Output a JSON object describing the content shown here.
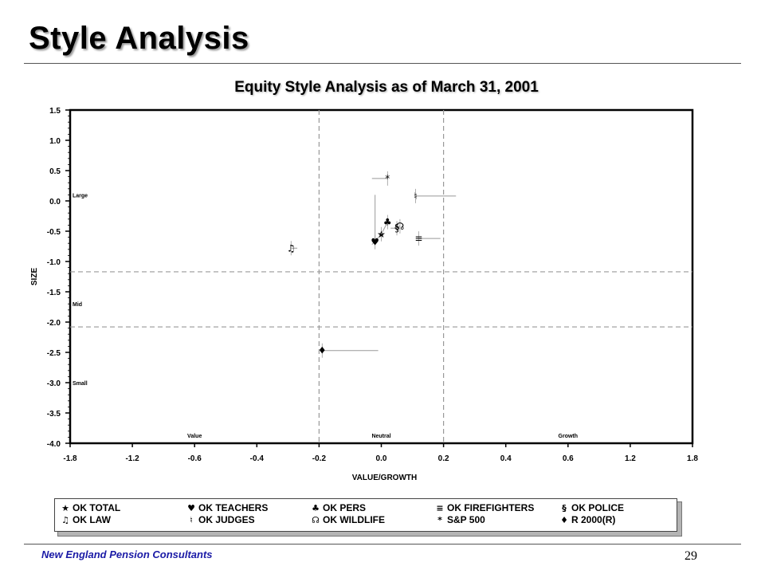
{
  "slide": {
    "title": "Style Analysis",
    "footer": "New England Pension Consultants",
    "page_number": "29"
  },
  "chart_data": {
    "type": "scatter",
    "title": "Equity Style Analysis as of March 31, 2001",
    "xlabel": "VALUE/GROWTH",
    "ylabel": "SIZE",
    "x_tick_labels": [
      "-1.8",
      "-1.2",
      "-0.6",
      "-0.4",
      "-0.2",
      "0.0",
      "0.2",
      "0.4",
      "0.6",
      "1.2",
      "1.8"
    ],
    "y_ticks": [
      1.5,
      1.0,
      0.5,
      0.0,
      -0.5,
      -1.0,
      -1.5,
      -2.0,
      -2.5,
      -3.0,
      -3.5,
      -4.0
    ],
    "y_tick_labels": [
      "1.5",
      "1.0",
      "0.5",
      "0.0",
      "-0.5",
      "-1.0",
      "-1.5",
      "-2.0",
      "-2.5",
      "-3.0",
      "-3.5",
      "-4.0"
    ],
    "ylim": [
      -4.0,
      1.5
    ],
    "x_region_labels": [
      {
        "text": "Value",
        "x": -0.6
      },
      {
        "text": "Neutral",
        "x": 0.0
      },
      {
        "text": "Growth",
        "x": 0.6
      }
    ],
    "y_region_labels": [
      {
        "text": "Large",
        "y": 0.1
      },
      {
        "text": "Mid",
        "y": -1.7
      },
      {
        "text": "Small",
        "y": -3.0
      }
    ],
    "reference_lines": {
      "x": [
        -0.2,
        0.2
      ],
      "y": [
        -1.17,
        -2.08
      ]
    },
    "grid": false,
    "legend_position": "bottom",
    "series": [
      {
        "name": "OK TOTAL",
        "symbol": "★",
        "x": 0.0,
        "y": -0.55,
        "tail": {
          "x": -0.03,
          "y": -0.72
        }
      },
      {
        "name": "OK TEACHERS",
        "symbol": "♥",
        "x": -0.02,
        "y": -0.68,
        "tail": {
          "x": -0.02,
          "y": 0.1
        }
      },
      {
        "name": "OK PERS",
        "symbol": "♣",
        "x": 0.02,
        "y": -0.35,
        "tail": {
          "x": 0.0,
          "y": -0.55
        }
      },
      {
        "name": "OK FIREFIGHTERS",
        "symbol": "≡",
        "x": 0.12,
        "y": -0.62,
        "tail": {
          "x": 0.19,
          "y": -0.62
        }
      },
      {
        "name": "OK POLICE",
        "symbol": "§",
        "x": 0.05,
        "y": -0.45,
        "tail": {
          "x": 0.03,
          "y": -0.45
        }
      },
      {
        "name": "OK LAW",
        "symbol": "♫",
        "x": -0.29,
        "y": -0.78,
        "tail": {
          "x": -0.27,
          "y": -0.78
        }
      },
      {
        "name": "OK JUDGES",
        "symbol": "♮",
        "x": 0.11,
        "y": 0.08,
        "tail": {
          "x": 0.24,
          "y": 0.08
        }
      },
      {
        "name": "OK WILDLIFE",
        "symbol": "☊",
        "x": 0.06,
        "y": -0.42,
        "tail": {
          "x": 0.05,
          "y": -0.42
        }
      },
      {
        "name": "S&P 500",
        "symbol": "*",
        "x": 0.02,
        "y": 0.37,
        "tail": {
          "x": -0.03,
          "y": 0.37
        }
      },
      {
        "name": "R 2000(R)",
        "symbol": "♦",
        "x": -0.19,
        "y": -2.47,
        "tail": {
          "x": -0.01,
          "y": -2.47
        }
      }
    ]
  },
  "legend": {
    "items": [
      {
        "symbol": "★",
        "label": "OK TOTAL"
      },
      {
        "symbol": "♥",
        "label": "OK TEACHERS"
      },
      {
        "symbol": "♣",
        "label": "OK PERS"
      },
      {
        "symbol": "≡",
        "label": "OK FIREFIGHTERS"
      },
      {
        "symbol": "§",
        "label": "OK POLICE"
      },
      {
        "symbol": "♫",
        "label": "OK LAW"
      },
      {
        "symbol": "♮",
        "label": "OK JUDGES"
      },
      {
        "symbol": "☊",
        "label": "OK WILDLIFE"
      },
      {
        "symbol": "*",
        "label": "S&P 500"
      },
      {
        "symbol": "♦",
        "label": "R 2000(R)"
      }
    ]
  },
  "colors": {
    "axis": "#000000",
    "reference_line": "#999999",
    "tail_line": "#999999",
    "footer_text": "#1a1aa6"
  }
}
